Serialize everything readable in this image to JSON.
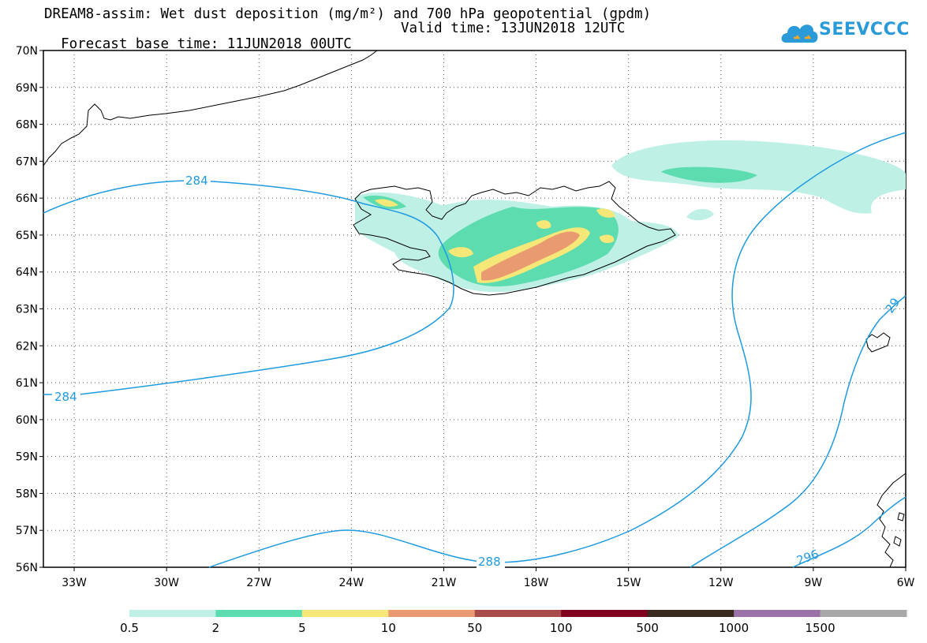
{
  "header": {
    "title_line1": "DREAM8-assim: Wet dust deposition (mg/m²) and 700 hPa geopotential (gpdm)",
    "forecast_base": "Forecast base time: 11JUN2018 00UTC",
    "valid_time": "Valid time: 13JUN2018 12UTC"
  },
  "logo": {
    "text": "SEEVCCC",
    "color": "#2a9bd8"
  },
  "map": {
    "lat_ticks": [
      "70N",
      "69N",
      "68N",
      "67N",
      "66N",
      "65N",
      "64N",
      "63N",
      "62N",
      "61N",
      "60N",
      "59N",
      "58N",
      "57N",
      "56N"
    ],
    "lon_ticks": [
      "33W",
      "30W",
      "27W",
      "24W",
      "21W",
      "18W",
      "15W",
      "12W",
      "9W",
      "6W"
    ],
    "contour_labels": [
      "284",
      "284",
      "288",
      "296",
      "29"
    ],
    "contour_color": "#1e9be0"
  },
  "colorbar": {
    "labels": [
      "0.5",
      "2",
      "5",
      "10",
      "50",
      "100",
      "500",
      "1000",
      "1500"
    ],
    "colors": [
      "#bff0e6",
      "#5ddcb0",
      "#f5e878",
      "#e99a70",
      "#a84b4b",
      "#800020",
      "#3a2a1e",
      "#9a72a8",
      "#a8a8a8"
    ]
  }
}
